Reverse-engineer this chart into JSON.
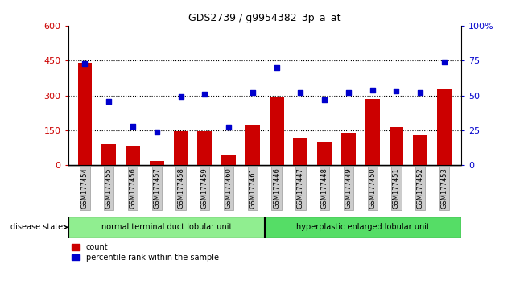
{
  "title": "GDS2739 / g9954382_3p_a_at",
  "samples": [
    "GSM177454",
    "GSM177455",
    "GSM177456",
    "GSM177457",
    "GSM177458",
    "GSM177459",
    "GSM177460",
    "GSM177461",
    "GSM177446",
    "GSM177447",
    "GSM177448",
    "GSM177449",
    "GSM177450",
    "GSM177451",
    "GSM177452",
    "GSM177453"
  ],
  "counts": [
    440,
    90,
    85,
    20,
    148,
    148,
    45,
    175,
    295,
    120,
    100,
    140,
    285,
    165,
    130,
    325
  ],
  "percentiles": [
    73,
    46,
    28,
    24,
    49,
    51,
    27,
    52,
    70,
    52,
    47,
    52,
    54,
    53,
    52,
    74
  ],
  "group1_label": "normal terminal duct lobular unit",
  "group2_label": "hyperplastic enlarged lobular unit",
  "group1_count": 8,
  "group2_count": 8,
  "bar_color": "#cc0000",
  "dot_color": "#0000cc",
  "ylim_left": [
    0,
    600
  ],
  "ylim_right": [
    0,
    100
  ],
  "yticks_left": [
    0,
    150,
    300,
    450,
    600
  ],
  "yticks_right": [
    0,
    25,
    50,
    75,
    100
  ],
  "disease_state_label": "disease state",
  "legend_count_label": "count",
  "legend_pct_label": "percentile rank within the sample",
  "group1_color": "#90ee90",
  "group2_color": "#55dd66",
  "tick_label_color_left": "#cc0000",
  "tick_label_color_right": "#0000cc",
  "background_color": "#ffffff",
  "plot_bg_color": "#ffffff",
  "xticklabel_bg": "#cccccc"
}
